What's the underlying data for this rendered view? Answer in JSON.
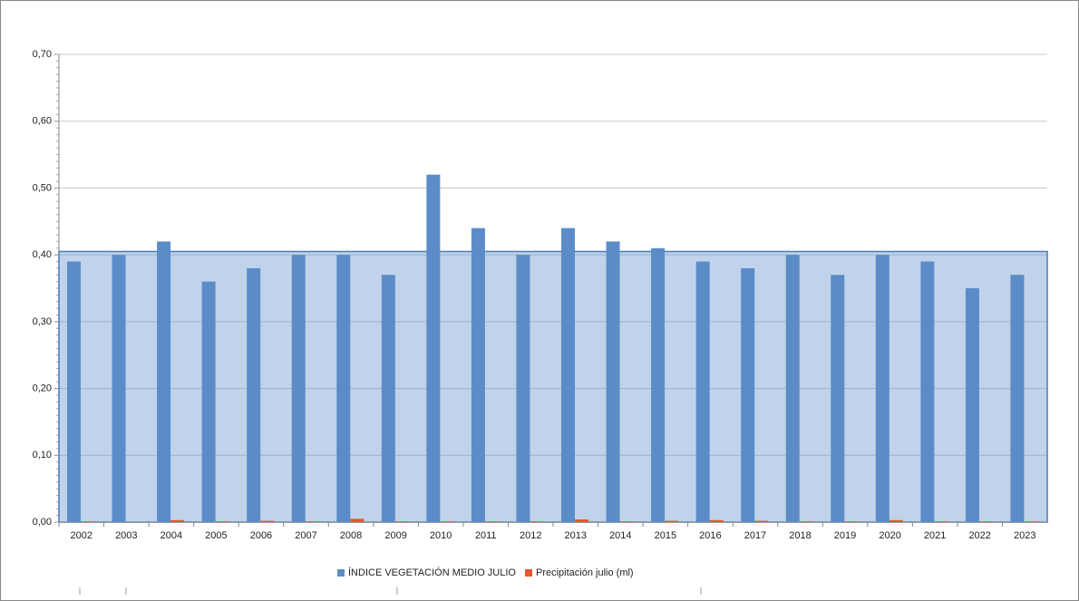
{
  "chart_data": {
    "type": "bar",
    "categories": [
      "2002",
      "2003",
      "2004",
      "2005",
      "2006",
      "2007",
      "2008",
      "2009",
      "2010",
      "2011",
      "2012",
      "2013",
      "2014",
      "2015",
      "2016",
      "2017",
      "2018",
      "2019",
      "2020",
      "2021",
      "2022",
      "2023"
    ],
    "series": [
      {
        "name": "ÍNDICE VEGETACIÓN MEDIO JULIO",
        "color": "#5b8cc8",
        "values": [
          0.39,
          0.4,
          0.42,
          0.36,
          0.38,
          0.4,
          0.4,
          0.37,
          0.52,
          0.44,
          0.4,
          0.44,
          0.42,
          0.41,
          0.39,
          0.38,
          0.4,
          0.37,
          0.4,
          0.39,
          0.35,
          0.37
        ]
      },
      {
        "name": "Precipitación julio (ml)",
        "color": "#e8552a",
        "values": [
          0.001,
          0,
          0.003,
          0.001,
          0.002,
          0.001,
          0.005,
          0.001,
          0.001,
          0.001,
          0.001,
          0.004,
          0.001,
          0.002,
          0.003,
          0.002,
          0.001,
          0.001,
          0.003,
          0.001,
          0.001,
          0.001
        ]
      }
    ],
    "ylim": [
      0,
      0.7
    ],
    "yticks": [
      {
        "value": 0,
        "label": "0,00"
      },
      {
        "value": 0.1,
        "label": "0,10"
      },
      {
        "value": 0.2,
        "label": "0,20"
      },
      {
        "value": 0.3,
        "label": "0,30"
      },
      {
        "value": 0.4,
        "label": "0,40"
      },
      {
        "value": 0.5,
        "label": "0,50"
      },
      {
        "value": 0.6,
        "label": "0,60"
      },
      {
        "value": 0.7,
        "label": "0,70"
      }
    ],
    "grid": true,
    "shaded_range": [
      0,
      0.405
    ],
    "legend": "bottom"
  }
}
